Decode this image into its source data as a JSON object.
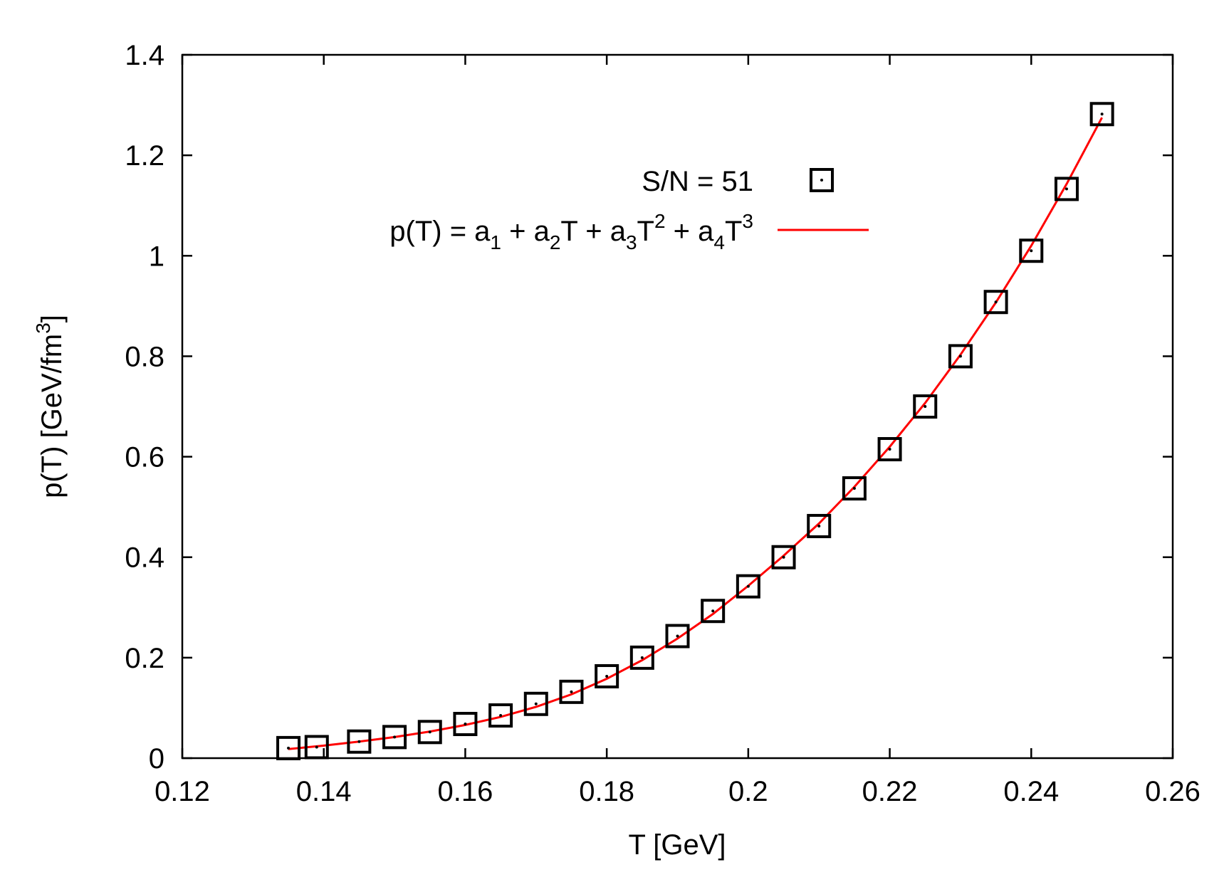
{
  "chart_data": {
    "type": "scatter",
    "xlabel": "T [GeV]",
    "ylabel": {
      "main": "p(T) [GeV/fm",
      "sup": "3",
      "close": "]"
    },
    "xlim": [
      0.12,
      0.26
    ],
    "ylim": [
      0,
      1.4
    ],
    "x_ticks": [
      0.12,
      0.14,
      0.16,
      0.18,
      0.2,
      0.22,
      0.24,
      0.26
    ],
    "x_tick_labels": [
      "0.12",
      "0.14",
      "0.16",
      "0.18",
      "0.2",
      "0.22",
      "0.24",
      "0.26"
    ],
    "y_ticks": [
      0,
      0.2,
      0.4,
      0.6,
      0.8,
      1.0,
      1.2,
      1.4
    ],
    "y_tick_labels": [
      "0",
      "0.2",
      "0.4",
      "0.6",
      "0.8",
      "1",
      "1.2",
      "1.4"
    ],
    "grid": false,
    "legend_position": "top-center",
    "series": [
      {
        "name": "S/N = 51",
        "kind": "points",
        "marker": "open-square",
        "color": "#000000",
        "x": [
          0.135,
          0.139,
          0.145,
          0.15,
          0.155,
          0.16,
          0.165,
          0.17,
          0.175,
          0.18,
          0.185,
          0.19,
          0.195,
          0.2,
          0.205,
          0.21,
          0.215,
          0.22,
          0.225,
          0.23,
          0.235,
          0.24,
          0.245,
          0.25
        ],
        "y": [
          0.02,
          0.022,
          0.033,
          0.042,
          0.052,
          0.068,
          0.085,
          0.108,
          0.132,
          0.163,
          0.2,
          0.243,
          0.293,
          0.342,
          0.4,
          0.462,
          0.537,
          0.615,
          0.7,
          0.8,
          0.908,
          1.01,
          1.133,
          1.282
        ]
      },
      {
        "name": "p(T) = a1 + a2T + a3T2 + a4T3",
        "kind": "line",
        "color": "#ff0000",
        "x": [
          0.135,
          0.14,
          0.145,
          0.15,
          0.155,
          0.16,
          0.165,
          0.17,
          0.175,
          0.18,
          0.185,
          0.19,
          0.195,
          0.2,
          0.205,
          0.21,
          0.215,
          0.22,
          0.225,
          0.23,
          0.235,
          0.24,
          0.245,
          0.25
        ],
        "y": [
          0.018,
          0.025,
          0.033,
          0.042,
          0.053,
          0.066,
          0.082,
          0.102,
          0.127,
          0.158,
          0.195,
          0.238,
          0.287,
          0.343,
          0.403,
          0.467,
          0.54,
          0.62,
          0.707,
          0.803,
          0.907,
          1.02,
          1.143,
          1.275
        ]
      }
    ],
    "legend_items": [
      {
        "name": "S/N = 51"
      },
      {
        "parts": [
          {
            "t": "p(T) = a",
            "s": "n"
          },
          {
            "t": "1",
            "s": "sub"
          },
          {
            "t": " + a",
            "s": "n"
          },
          {
            "t": "2",
            "s": "sub"
          },
          {
            "t": "T + a",
            "s": "n"
          },
          {
            "t": "3",
            "s": "sub"
          },
          {
            "t": "T",
            "s": "n"
          },
          {
            "t": "2",
            "s": "sup"
          },
          {
            "t": " + a",
            "s": "n"
          },
          {
            "t": "4",
            "s": "sub"
          },
          {
            "t": "T",
            "s": "n"
          },
          {
            "t": "3",
            "s": "sup"
          }
        ]
      }
    ]
  }
}
